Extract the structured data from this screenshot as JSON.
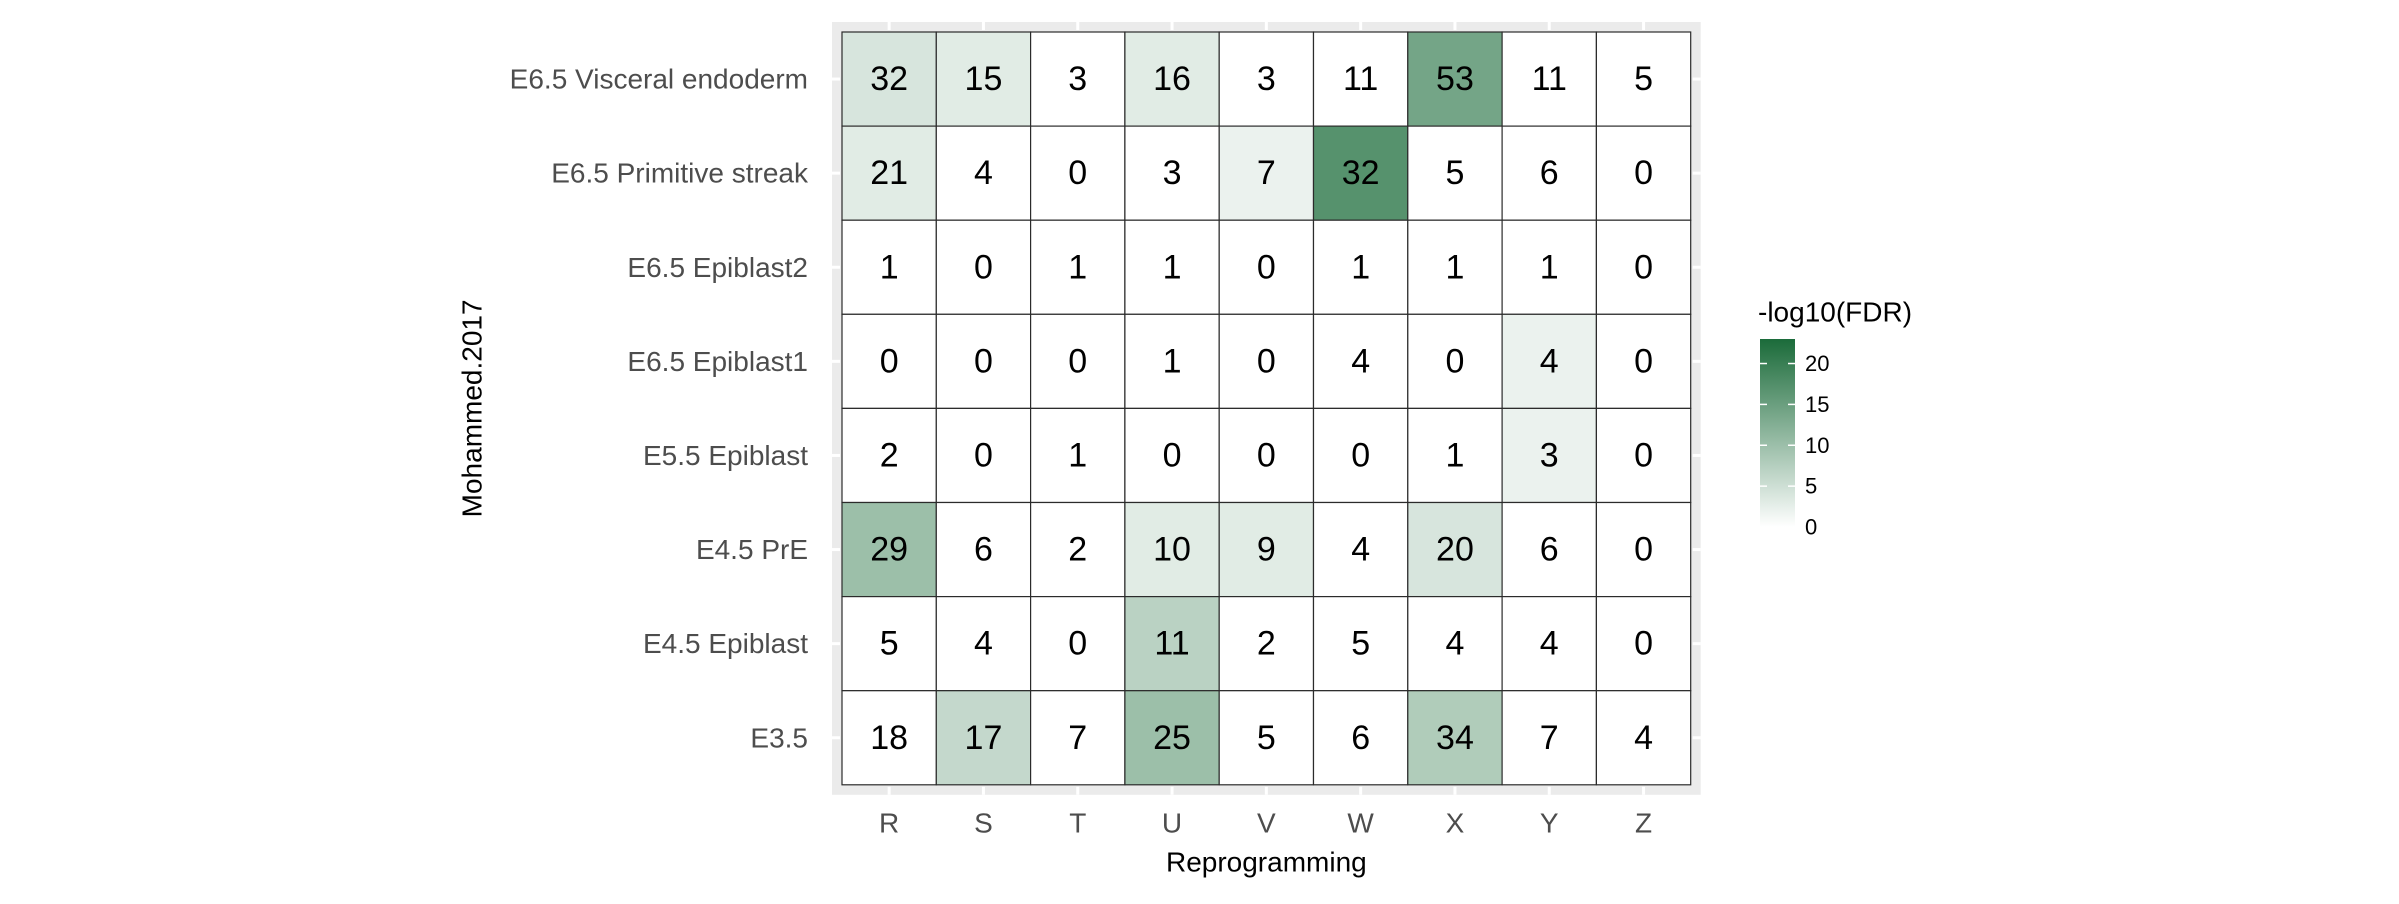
{
  "chart_data": {
    "type": "heatmap",
    "xlabel": "Reprogramming",
    "ylabel": "Mohammed.2017",
    "x_categories": [
      "R",
      "S",
      "T",
      "U",
      "V",
      "W",
      "X",
      "Y",
      "Z"
    ],
    "y_categories_top_to_bottom": [
      "E6.5 Visceral endoderm",
      "E6.5 Primitive streak",
      "E6.5 Epiblast2",
      "E6.5 Epiblast1",
      "E5.5 Epiblast",
      "E4.5 PrE",
      "E4.5 Epiblast",
      "E3.5"
    ],
    "cell_labels": [
      [
        32,
        15,
        3,
        16,
        3,
        11,
        53,
        11,
        5
      ],
      [
        21,
        4,
        0,
        3,
        7,
        32,
        5,
        6,
        0
      ],
      [
        1,
        0,
        1,
        1,
        0,
        1,
        1,
        1,
        0
      ],
      [
        0,
        0,
        0,
        1,
        0,
        4,
        0,
        4,
        0
      ],
      [
        2,
        0,
        1,
        0,
        0,
        0,
        1,
        3,
        0
      ],
      [
        29,
        6,
        2,
        10,
        9,
        4,
        20,
        6,
        0
      ],
      [
        5,
        4,
        0,
        11,
        2,
        5,
        4,
        4,
        0
      ],
      [
        18,
        17,
        7,
        25,
        5,
        6,
        34,
        7,
        4
      ]
    ],
    "fill_values": [
      [
        4,
        3,
        0,
        3,
        0,
        0,
        14,
        0,
        0
      ],
      [
        3,
        0,
        0,
        0,
        2,
        17,
        0,
        0,
        0
      ],
      [
        0,
        0,
        0,
        0,
        0,
        0,
        0,
        0,
        0
      ],
      [
        0,
        0,
        0,
        0,
        0,
        0,
        0,
        2,
        0
      ],
      [
        0,
        0,
        0,
        0,
        0,
        0,
        0,
        2,
        0
      ],
      [
        10,
        0,
        0,
        3,
        3,
        0,
        4,
        0,
        0
      ],
      [
        0,
        0,
        0,
        7,
        0,
        0,
        0,
        0,
        0
      ],
      [
        0,
        6,
        0,
        10,
        0,
        0,
        8,
        0,
        0
      ]
    ],
    "legend": {
      "title": "-log10(FDR)",
      "ticks": [
        0,
        5,
        10,
        15,
        20
      ],
      "range": [
        0,
        23
      ],
      "placement": "right"
    },
    "colors": {
      "low": "#ffffff",
      "high": "#1b6b3a",
      "panel": "#ebebeb",
      "border": "#2b2b2b"
    }
  }
}
